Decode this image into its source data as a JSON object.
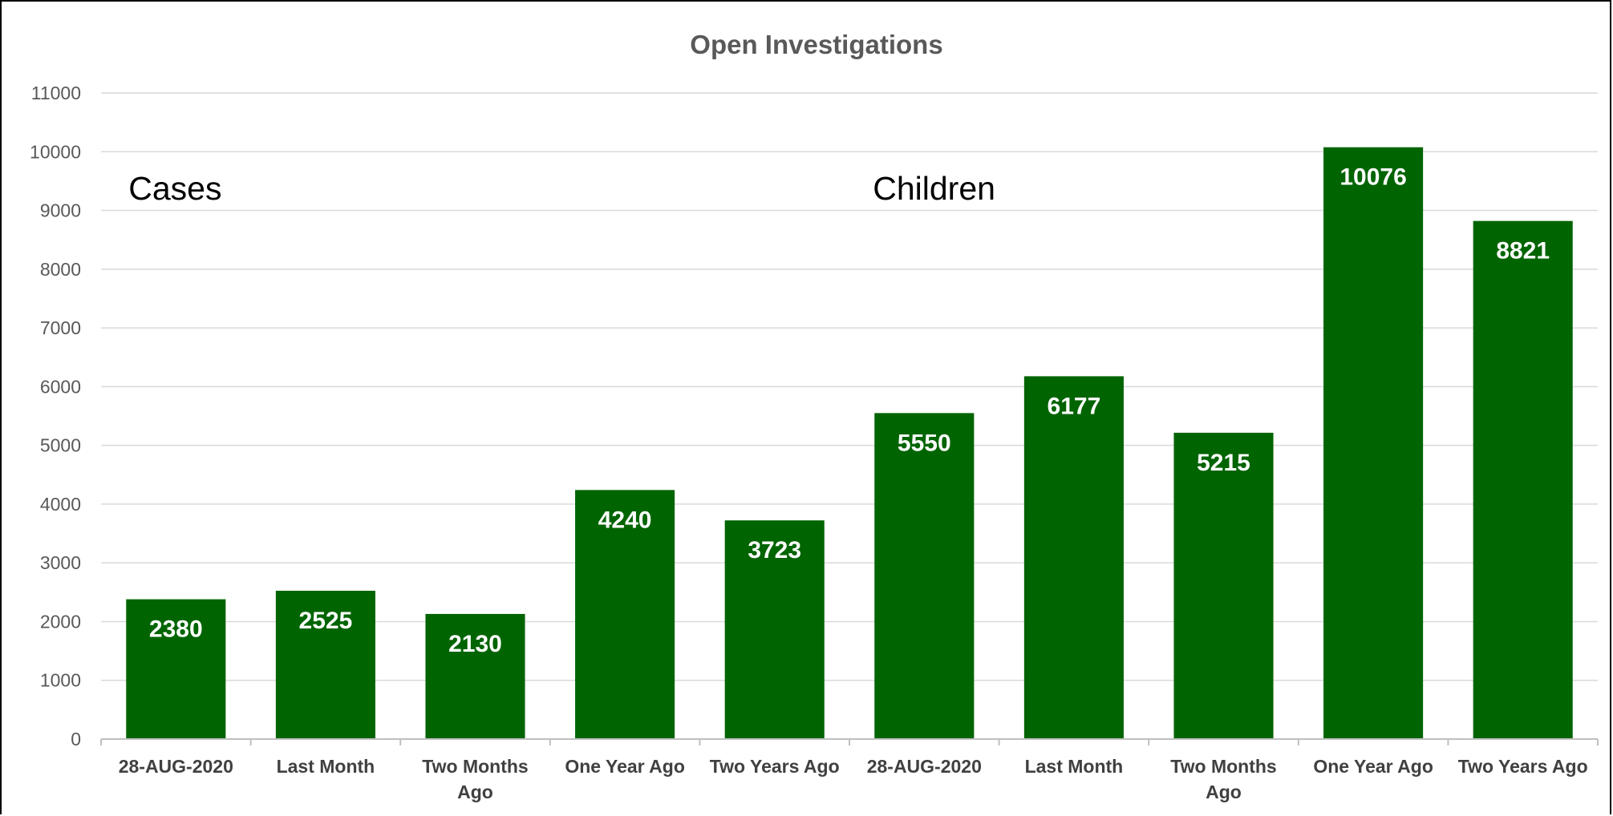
{
  "chart_data": {
    "type": "bar",
    "title": "Open Investigations",
    "xlabel": "",
    "ylabel": "",
    "ylim": [
      0,
      11000
    ],
    "ytick_step": 1000,
    "yticks": [
      "0",
      "1000",
      "2000",
      "3000",
      "4000",
      "5000",
      "6000",
      "7000",
      "8000",
      "9000",
      "10000",
      "11000"
    ],
    "grid": true,
    "legend": "none",
    "bar_color": "#006400",
    "categories": [
      [
        "28-AUG-2020"
      ],
      [
        "Last Month"
      ],
      [
        "Two Months",
        "Ago"
      ],
      [
        "One Year Ago"
      ],
      [
        "Two Years Ago"
      ],
      [
        "28-AUG-2020"
      ],
      [
        "Last Month"
      ],
      [
        "Two Months",
        "Ago"
      ],
      [
        "One Year Ago"
      ],
      [
        "Two Years Ago"
      ]
    ],
    "values": [
      2380,
      2525,
      2130,
      4240,
      3723,
      5550,
      6177,
      5215,
      10076,
      8821
    ],
    "annotations": [
      {
        "text": "Cases",
        "group_start": 0,
        "group_end": 4
      },
      {
        "text": "Children",
        "group_start": 5,
        "group_end": 9
      }
    ]
  }
}
